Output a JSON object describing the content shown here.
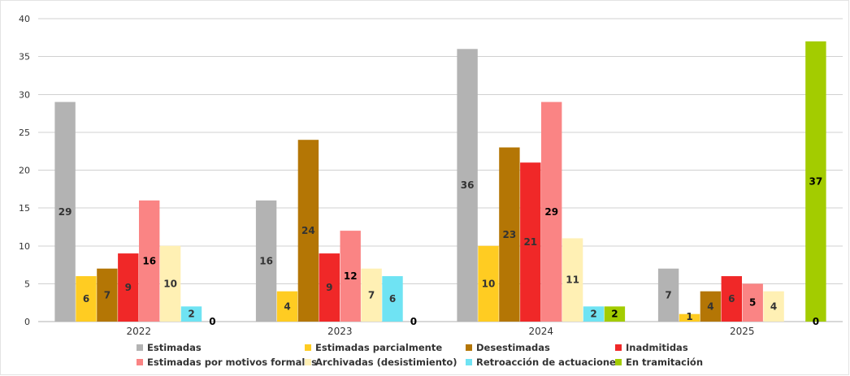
{
  "chart_data": {
    "type": "bar",
    "title": "",
    "xlabel": "",
    "ylabel": "",
    "ylim": [
      0,
      40
    ],
    "yticks": [
      0,
      5,
      10,
      15,
      20,
      25,
      30,
      35,
      40
    ],
    "grid": true,
    "legend_position": "bottom",
    "categories": [
      "2022",
      "2023",
      "2024",
      "2025"
    ],
    "series": [
      {
        "name": "Estimadas",
        "color": "#b3b3b3",
        "label_color": "#333333",
        "values": [
          29,
          16,
          36,
          7
        ]
      },
      {
        "name": "Estimadas parcialmente",
        "color": "#ffcc22",
        "label_color": "#333333",
        "values": [
          6,
          4,
          10,
          1
        ]
      },
      {
        "name": "Desestimadas",
        "color": "#b47605",
        "label_color": "#333333",
        "values": [
          7,
          24,
          23,
          4
        ]
      },
      {
        "name": "Inadmitidas",
        "color": "#f02828",
        "label_color": "#333333",
        "values": [
          9,
          9,
          21,
          6
        ]
      },
      {
        "name": "Estimadas por motivos formales",
        "color": "#fa8484",
        "label_color": "#000000",
        "values": [
          16,
          12,
          29,
          5
        ]
      },
      {
        "name": "Archivadas (desistimiento)",
        "color": "#fff0b4",
        "label_color": "#333333",
        "values": [
          10,
          7,
          11,
          4
        ]
      },
      {
        "name": "Retroacción de actuaciones",
        "color": "#6fe3f3",
        "label_color": "#333333",
        "values": [
          2,
          6,
          2,
          null
        ]
      },
      {
        "name": "En tramitación",
        "color": "#a3cc00",
        "label_color": "#000000",
        "values": [
          0,
          0,
          2,
          37
        ]
      }
    ],
    "zero_labels": [
      {
        "category": "2022",
        "text": "0"
      },
      {
        "category": "2023",
        "text": "0"
      },
      {
        "category": "2025",
        "text": "0"
      }
    ]
  }
}
